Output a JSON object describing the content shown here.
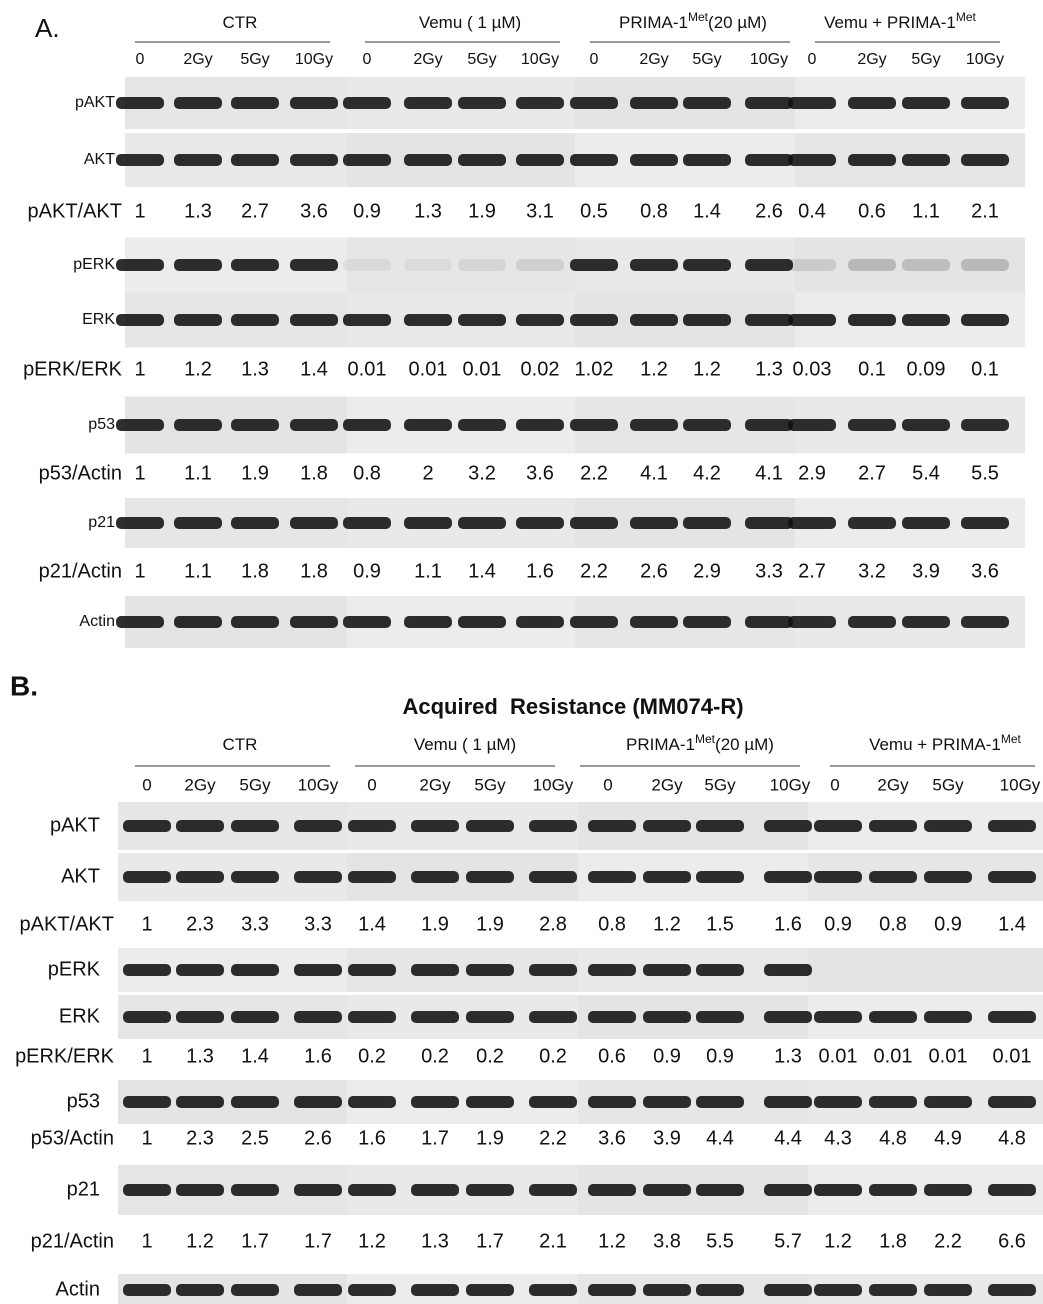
{
  "panels": [
    {
      "label": "A.",
      "groups": [
        {
          "name": "CTR"
        },
        {
          "name": "Vemu ( 1 µM)"
        },
        {
          "name": "PRIMA-1",
          "sup": "Met",
          "after": "(20 µM)"
        },
        {
          "name": "Vemu + PRIMA-1",
          "sup": "Met"
        }
      ],
      "doses": [
        "0",
        "2Gy",
        "5Gy",
        "10Gy"
      ],
      "rows": [
        {
          "label": "pAKT"
        },
        {
          "label": "AKT"
        },
        {
          "label": "pAKT/AKT",
          "values": [
            1,
            1.3,
            2.7,
            3.6,
            0.9,
            1.3,
            1.9,
            3.1,
            0.5,
            0.8,
            1.4,
            2.6,
            0.4,
            0.6,
            1.1,
            2.1
          ]
        },
        {
          "label": "pERK"
        },
        {
          "label": "ERK"
        },
        {
          "label": "pERK/ERK",
          "values": [
            1,
            1.2,
            1.3,
            1.4,
            0.01,
            0.01,
            0.01,
            0.02,
            1.02,
            1.2,
            1.2,
            1.3,
            0.03,
            0.1,
            0.09,
            0.1
          ]
        },
        {
          "label": "p53"
        },
        {
          "label": "p53/Actin",
          "values": [
            1,
            1.1,
            1.9,
            1.8,
            0.8,
            2,
            3.2,
            3.6,
            2.2,
            4.1,
            4.2,
            4.1,
            2.9,
            2.7,
            5.4,
            5.5
          ]
        },
        {
          "label": "p21"
        },
        {
          "label": "p21/Actin",
          "values": [
            1,
            1.1,
            1.8,
            1.8,
            0.9,
            1.1,
            1.4,
            1.6,
            2.2,
            2.6,
            2.9,
            3.3,
            2.7,
            3.2,
            3.9,
            3.6
          ]
        },
        {
          "label": "Actin"
        }
      ]
    },
    {
      "label": "B.",
      "title": "Acquired  Resistance (MM074-R)",
      "groups": [
        {
          "name": "CTR"
        },
        {
          "name": "Vemu ( 1 µM)"
        },
        {
          "name": "PRIMA-1",
          "sup": "Met",
          "after": "(20 µM)"
        },
        {
          "name": "Vemu + PRIMA-1",
          "sup": "Met"
        }
      ],
      "doses": [
        "0",
        "2Gy",
        "5Gy",
        "10Gy"
      ],
      "rows": [
        {
          "label": "pAKT"
        },
        {
          "label": "AKT"
        },
        {
          "label": "pAKT/AKT",
          "values": [
            1,
            2.3,
            3.3,
            3.3,
            1.4,
            1.9,
            1.9,
            2.8,
            0.8,
            1.2,
            1.5,
            1.6,
            0.9,
            0.8,
            0.9,
            1.4
          ]
        },
        {
          "label": "pERK"
        },
        {
          "label": "ERK"
        },
        {
          "label": "pERK/ERK",
          "values": [
            1,
            1.3,
            1.4,
            1.6,
            0.2,
            0.2,
            0.2,
            0.2,
            0.6,
            0.9,
            0.9,
            1.3,
            0.01,
            0.01,
            0.01,
            0.01
          ]
        },
        {
          "label": "p53"
        },
        {
          "label": "p53/Actin",
          "values": [
            1,
            2.3,
            2.5,
            2.6,
            1.6,
            1.7,
            1.9,
            2.2,
            3.6,
            3.9,
            4.4,
            4.4,
            4.3,
            4.8,
            4.9,
            4.8
          ]
        },
        {
          "label": "p21"
        },
        {
          "label": "p21/Actin",
          "values": [
            1,
            1.2,
            1.7,
            1.7,
            1.2,
            1.3,
            1.7,
            2.1,
            1.2,
            3.8,
            5.5,
            5.7,
            1.2,
            1.8,
            2.2,
            6.6
          ]
        },
        {
          "label": "Actin"
        }
      ]
    }
  ]
}
